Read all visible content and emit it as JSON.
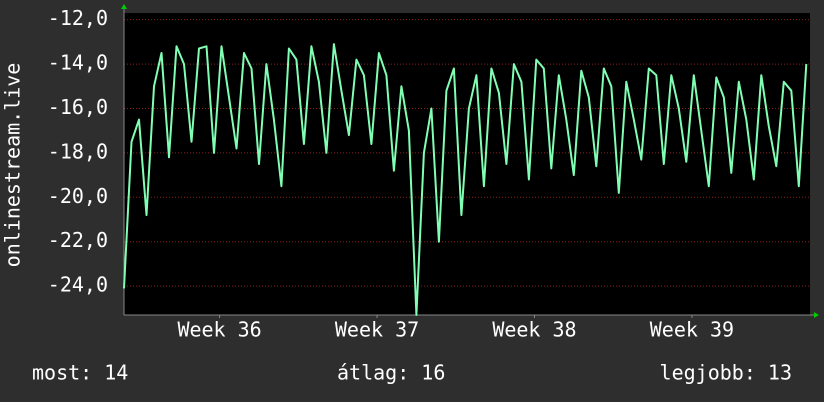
{
  "chart_data": {
    "type": "line",
    "ylabel": "onlinestream.live",
    "xlim": [
      0,
      732
    ],
    "xticks": [
      {
        "value": 102,
        "label": "Week 36"
      },
      {
        "value": 270,
        "label": "Week 37"
      },
      {
        "value": 438,
        "label": "Week 38"
      },
      {
        "value": 606,
        "label": "Week 39"
      }
    ],
    "ylim": [
      -25.3,
      -11.7
    ],
    "yticks": [
      {
        "value": -12,
        "label": "-12,0"
      },
      {
        "value": -14,
        "label": "-14,0"
      },
      {
        "value": -16,
        "label": "-16,0"
      },
      {
        "value": -18,
        "label": "-18,0"
      },
      {
        "value": -20,
        "label": "-20,0"
      },
      {
        "value": -22,
        "label": "-22,0"
      },
      {
        "value": -24,
        "label": "-24,0"
      }
    ],
    "grid": true,
    "x": [
      0,
      8,
      16,
      24,
      32,
      40,
      48,
      56,
      64,
      72,
      80,
      88,
      96,
      104,
      112,
      120,
      128,
      136,
      144,
      152,
      160,
      168,
      176,
      184,
      192,
      200,
      208,
      216,
      224,
      232,
      240,
      248,
      256,
      264,
      272,
      280,
      288,
      296,
      304,
      312,
      320,
      328,
      336,
      344,
      352,
      360,
      368,
      376,
      384,
      392,
      400,
      408,
      416,
      424,
      432,
      440,
      448,
      456,
      464,
      472,
      480,
      488,
      496,
      504,
      512,
      520,
      528,
      536,
      544,
      552,
      560,
      568,
      576,
      584,
      592,
      600,
      608,
      616,
      624,
      632,
      640,
      648,
      656,
      664,
      672,
      680,
      688,
      696,
      704,
      712,
      720,
      728
    ],
    "series": [
      {
        "name": "onlinestream.live",
        "color": "#80ffb4",
        "values": [
          -24.1,
          -17.5,
          -16.5,
          -20.8,
          -15,
          -13.5,
          -18.2,
          -13.2,
          -14,
          -17.5,
          -13.3,
          -13.2,
          -18,
          -13.2,
          -15.5,
          -17.8,
          -13.5,
          -14.2,
          -18.5,
          -14,
          -16.5,
          -19.5,
          -13.3,
          -13.8,
          -17.6,
          -13.2,
          -14.8,
          -18,
          -13.1,
          -15.2,
          -17.2,
          -13.8,
          -14.5,
          -17.6,
          -13.5,
          -14.5,
          -18.8,
          -15,
          -17,
          -25.3,
          -18,
          -16,
          -22,
          -15.2,
          -14.2,
          -20.8,
          -16,
          -14.5,
          -19.5,
          -14.2,
          -15.3,
          -18.5,
          -14,
          -14.8,
          -19.2,
          -13.8,
          -14.2,
          -18.7,
          -14.5,
          -16.5,
          -19,
          -14.3,
          -15.5,
          -18.6,
          -14.2,
          -15,
          -19.8,
          -14.8,
          -16.5,
          -18.3,
          -14.2,
          -14.5,
          -18.5,
          -14.5,
          -16,
          -18.4,
          -14.5,
          -17,
          -19.5,
          -14.6,
          -15.5,
          -18.9,
          -14.8,
          -16.5,
          -19.2,
          -14.5,
          -16.8,
          -18.6,
          -14.8,
          -15.2,
          -19.5,
          -14
        ]
      }
    ]
  },
  "stats": [
    "most: 14",
    "átlag: 16",
    "legjobb: 13"
  ]
}
